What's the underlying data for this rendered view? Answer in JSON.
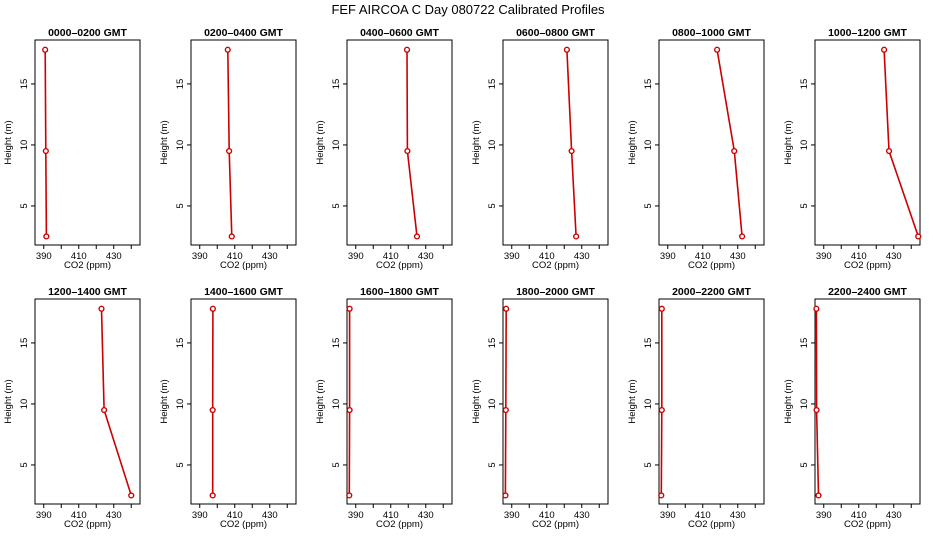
{
  "title": "FEF AIRCOA C  Day 080722  Calibrated Profiles",
  "colors": {
    "profile": "#cc0000",
    "axis": "#000000"
  },
  "chart_data": {
    "type": "line",
    "xlabel": "CO2 (ppm)",
    "ylabel": "Height (m)",
    "xlim": [
      385,
      445
    ],
    "ylim": [
      1.8,
      18.6
    ],
    "xticks": [
      390,
      410,
      430
    ],
    "xticks_minor": [
      400,
      420,
      440
    ],
    "yticks": [
      5,
      10,
      15
    ],
    "heights": [
      2.5,
      9.5,
      17.8
    ],
    "panels": [
      {
        "title": "0000–0200 GMT",
        "values": [
          391.5,
          391.2,
          390.8
        ]
      },
      {
        "title": "0200–0400 GMT",
        "values": [
          408.3,
          406.8,
          406.0
        ]
      },
      {
        "title": "0400–0600 GMT",
        "values": [
          425.0,
          419.5,
          419.3
        ]
      },
      {
        "title": "0600–0800 GMT",
        "values": [
          426.8,
          424.2,
          421.5
        ]
      },
      {
        "title": "0800–1000 GMT",
        "values": [
          432.5,
          428.0,
          418.2
        ]
      },
      {
        "title": "1000–1200 GMT",
        "values": [
          444.0,
          427.3,
          424.5
        ]
      },
      {
        "title": "1200–1400 GMT",
        "values": [
          440.0,
          424.5,
          423.0
        ]
      },
      {
        "title": "1400–1600 GMT",
        "values": [
          397.4,
          397.4,
          397.5
        ]
      },
      {
        "title": "1600–1800 GMT",
        "values": [
          386.3,
          386.5,
          386.5
        ]
      },
      {
        "title": "1800–2000 GMT",
        "values": [
          386.4,
          386.6,
          386.8
        ]
      },
      {
        "title": "2000–2200 GMT",
        "values": [
          386.3,
          386.6,
          386.6
        ]
      },
      {
        "title": "2200–2400 GMT",
        "values": [
          387.0,
          385.9,
          385.8
        ]
      }
    ]
  }
}
